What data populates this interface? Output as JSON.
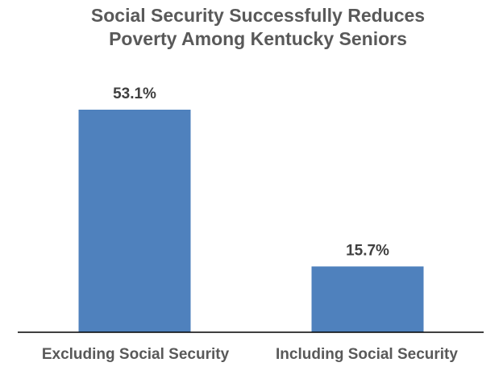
{
  "chart_data": {
    "type": "bar",
    "title": "Social Security Successfully Reduces Poverty Among Kentucky Seniors",
    "title_lines": [
      "Social Security Successfully Reduces",
      "Poverty Among Kentucky Seniors"
    ],
    "categories": [
      "Excluding Social Security",
      "Including Social Security"
    ],
    "values": [
      53.1,
      15.7
    ],
    "data_labels": [
      "53.1%",
      "15.7%"
    ],
    "xlabel": "",
    "ylabel": "",
    "ylim": [
      0,
      53.1
    ],
    "grid": false,
    "legend": "none",
    "bar_color": "#4f81bd",
    "axis_color": "#000000"
  }
}
